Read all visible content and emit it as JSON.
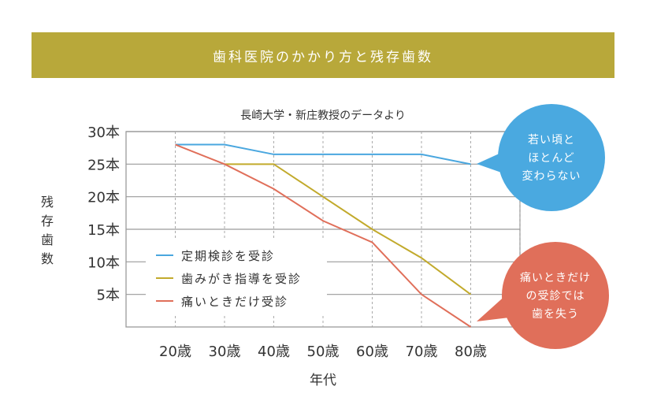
{
  "banner_title": "歯科医院のかかり方と残存歯数",
  "chart_data": {
    "type": "line",
    "subtitle": "長崎大学・新庄教授のデータより",
    "xlabel": "年代",
    "ylabel": "残存歯数",
    "x": [
      20,
      30,
      40,
      50,
      60,
      70,
      80
    ],
    "x_tick_labels": [
      "20歳",
      "30歳",
      "40歳",
      "50歳",
      "60歳",
      "70歳",
      "80歳"
    ],
    "y_tick_labels": [
      "5本",
      "10本",
      "15本",
      "20本",
      "25本",
      "30本"
    ],
    "y_ticks": [
      5,
      10,
      15,
      20,
      25,
      30
    ],
    "ylim": [
      0,
      30
    ],
    "xlim": [
      10,
      90
    ],
    "grid": true,
    "legend": "bottom-left",
    "series": [
      {
        "name": "定期検診を受診",
        "color": "#4aa7df",
        "values": [
          28,
          28,
          26.5,
          26.5,
          26.5,
          26.5,
          25
        ]
      },
      {
        "name": "歯みがき指導を受診",
        "color": "#c2aa2c",
        "values": [
          null,
          25,
          25,
          20,
          15,
          10.6,
          5
        ]
      },
      {
        "name": "痛いときだけ受診",
        "color": "#e06f5a",
        "values": [
          28,
          25,
          21.2,
          16.3,
          13,
          5,
          0
        ]
      }
    ],
    "annotations": [
      {
        "lines": [
          "若い頃と",
          "ほとんど",
          "変わらない"
        ],
        "color": "#4aa9e0"
      },
      {
        "lines": [
          "痛いときだけ",
          "の受診では",
          "歯を失う"
        ],
        "color": "#e06f5a"
      }
    ]
  }
}
